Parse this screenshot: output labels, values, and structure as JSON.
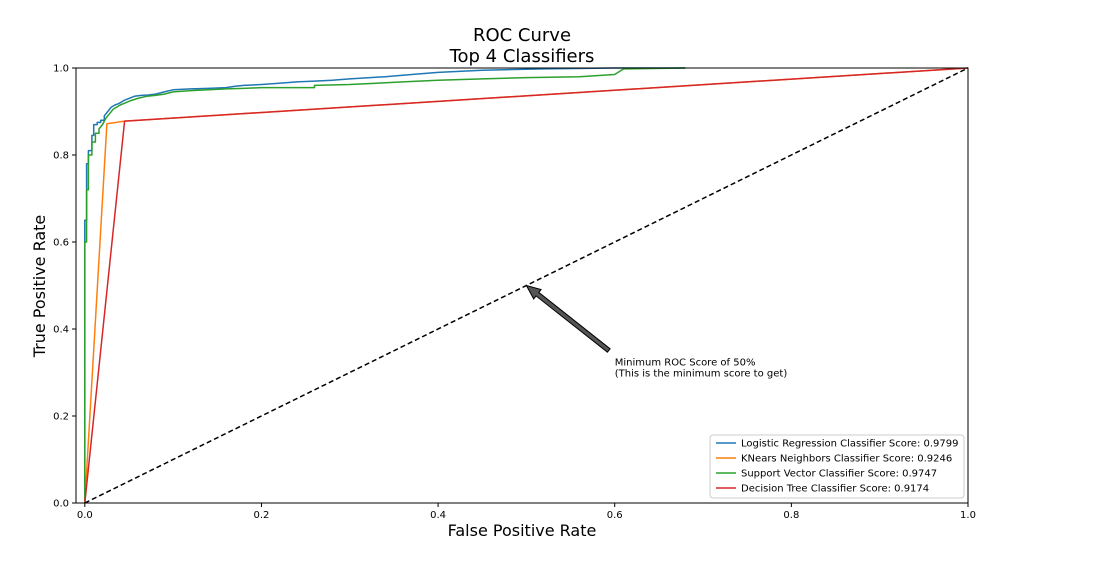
{
  "chart_data": {
    "type": "line",
    "title": [
      "ROC Curve",
      "Top 4 Classifiers"
    ],
    "xlabel": "False Positive Rate",
    "ylabel": "True Positive Rate",
    "xlim": [
      -0.01,
      1.0
    ],
    "ylim": [
      0.0,
      1.0
    ],
    "xticks": [
      0.0,
      0.2,
      0.4,
      0.6,
      0.8,
      1.0
    ],
    "xtick_labels": [
      "0.0",
      "0.2",
      "0.4",
      "0.6",
      "0.8",
      "1.0"
    ],
    "yticks": [
      0.0,
      0.2,
      0.4,
      0.6,
      0.8,
      1.0
    ],
    "ytick_labels": [
      "0.0",
      "0.2",
      "0.4",
      "0.6",
      "0.8",
      "1.0"
    ],
    "grid": false,
    "legend_position": "bottom-right",
    "series": [
      {
        "name": "Logistic Regression Classifier Score: 0.9799",
        "color": "#1f77b4",
        "x": [
          0,
          0,
          0.002,
          0.002,
          0.004,
          0.004,
          0.008,
          0.008,
          0.01,
          0.01,
          0.014,
          0.014,
          0.018,
          0.018,
          0.022,
          0.022,
          0.026,
          0.03,
          0.034,
          0.038,
          0.04,
          0.044,
          0.05,
          0.056,
          0.064,
          0.072,
          0.08,
          0.09,
          0.1,
          0.12,
          0.14,
          0.16,
          0.17,
          0.18,
          0.2,
          0.22,
          0.24,
          0.26,
          0.28,
          0.3,
          0.34,
          0.37,
          0.4,
          0.45,
          0.52,
          0.6,
          0.68
        ],
        "y": [
          0,
          0.65,
          0.65,
          0.78,
          0.78,
          0.81,
          0.81,
          0.845,
          0.845,
          0.87,
          0.87,
          0.875,
          0.875,
          0.88,
          0.88,
          0.89,
          0.9,
          0.91,
          0.915,
          0.918,
          0.92,
          0.925,
          0.93,
          0.935,
          0.937,
          0.938,
          0.94,
          0.945,
          0.95,
          0.952,
          0.953,
          0.955,
          0.958,
          0.96,
          0.962,
          0.965,
          0.968,
          0.97,
          0.972,
          0.975,
          0.98,
          0.985,
          0.99,
          0.995,
          0.998,
          1.0,
          1.0
        ]
      },
      {
        "name": "KNears Neighbors Classifier Score: 0.9246",
        "color": "#ff7f0e",
        "x": [
          0,
          0.025,
          0.045,
          1.0
        ],
        "y": [
          0,
          0.872,
          0.878,
          1.0
        ]
      },
      {
        "name": "Support Vector Classifier Score: 0.9747",
        "color": "#2ca02c",
        "x": [
          0,
          0,
          0.002,
          0.002,
          0.004,
          0.004,
          0.008,
          0.008,
          0.012,
          0.012,
          0.016,
          0.016,
          0.02,
          0.024,
          0.028,
          0.032,
          0.036,
          0.04,
          0.046,
          0.052,
          0.06,
          0.07,
          0.08,
          0.09,
          0.1,
          0.12,
          0.14,
          0.16,
          0.18,
          0.2,
          0.2,
          0.26,
          0.26,
          0.3,
          0.33,
          0.36,
          0.4,
          0.45,
          0.5,
          0.56,
          0.6,
          0.61,
          0.68
        ],
        "y": [
          0,
          0.6,
          0.6,
          0.72,
          0.72,
          0.8,
          0.8,
          0.83,
          0.83,
          0.85,
          0.85,
          0.86,
          0.87,
          0.885,
          0.895,
          0.905,
          0.91,
          0.915,
          0.92,
          0.925,
          0.93,
          0.935,
          0.937,
          0.94,
          0.945,
          0.948,
          0.95,
          0.952,
          0.953,
          0.955,
          0.955,
          0.955,
          0.96,
          0.962,
          0.965,
          0.968,
          0.972,
          0.975,
          0.978,
          0.98,
          0.985,
          0.998,
          1.0
        ]
      },
      {
        "name": "Decision Tree Classifier Score: 0.9174",
        "color": "#d62728",
        "x": [
          0,
          0.045,
          1.0
        ],
        "y": [
          0,
          0.878,
          1.0
        ]
      }
    ],
    "reference_line": {
      "x": [
        0,
        1
      ],
      "y": [
        0,
        1
      ],
      "color": "#000000",
      "style": "dashed"
    },
    "annotation": {
      "text_lines": [
        "Minimum ROC Score of 50%",
        " (This is the minimum score to get)"
      ],
      "xy": [
        0.5,
        0.5
      ],
      "xytext": [
        0.6,
        0.3
      ]
    }
  }
}
